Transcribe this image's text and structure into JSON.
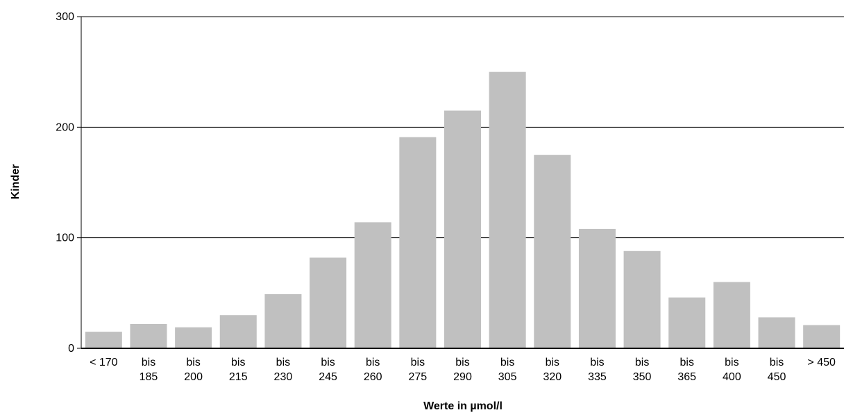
{
  "chart_data": {
    "type": "bar",
    "title": "",
    "xlabel": "Werte in µmol/l",
    "ylabel": "Kinder",
    "ylim": [
      0,
      300
    ],
    "yticks": [
      0,
      100,
      200,
      300
    ],
    "grid": true,
    "categories": [
      [
        "< 170"
      ],
      [
        "bis",
        "185"
      ],
      [
        "bis",
        "200"
      ],
      [
        "bis",
        "215"
      ],
      [
        "bis",
        "230"
      ],
      [
        "bis",
        "245"
      ],
      [
        "bis",
        "260"
      ],
      [
        "bis",
        "275"
      ],
      [
        "bis",
        "290"
      ],
      [
        "bis",
        "305"
      ],
      [
        "bis",
        "320"
      ],
      [
        "bis",
        "335"
      ],
      [
        "bis",
        "350"
      ],
      [
        "bis",
        "365"
      ],
      [
        "bis",
        "400"
      ],
      [
        "bis",
        "450"
      ],
      [
        "> 450"
      ]
    ],
    "values": [
      15,
      22,
      19,
      30,
      49,
      82,
      114,
      191,
      215,
      250,
      175,
      108,
      88,
      46,
      60,
      28,
      21
    ],
    "bar_color": "#c0c0c0"
  }
}
